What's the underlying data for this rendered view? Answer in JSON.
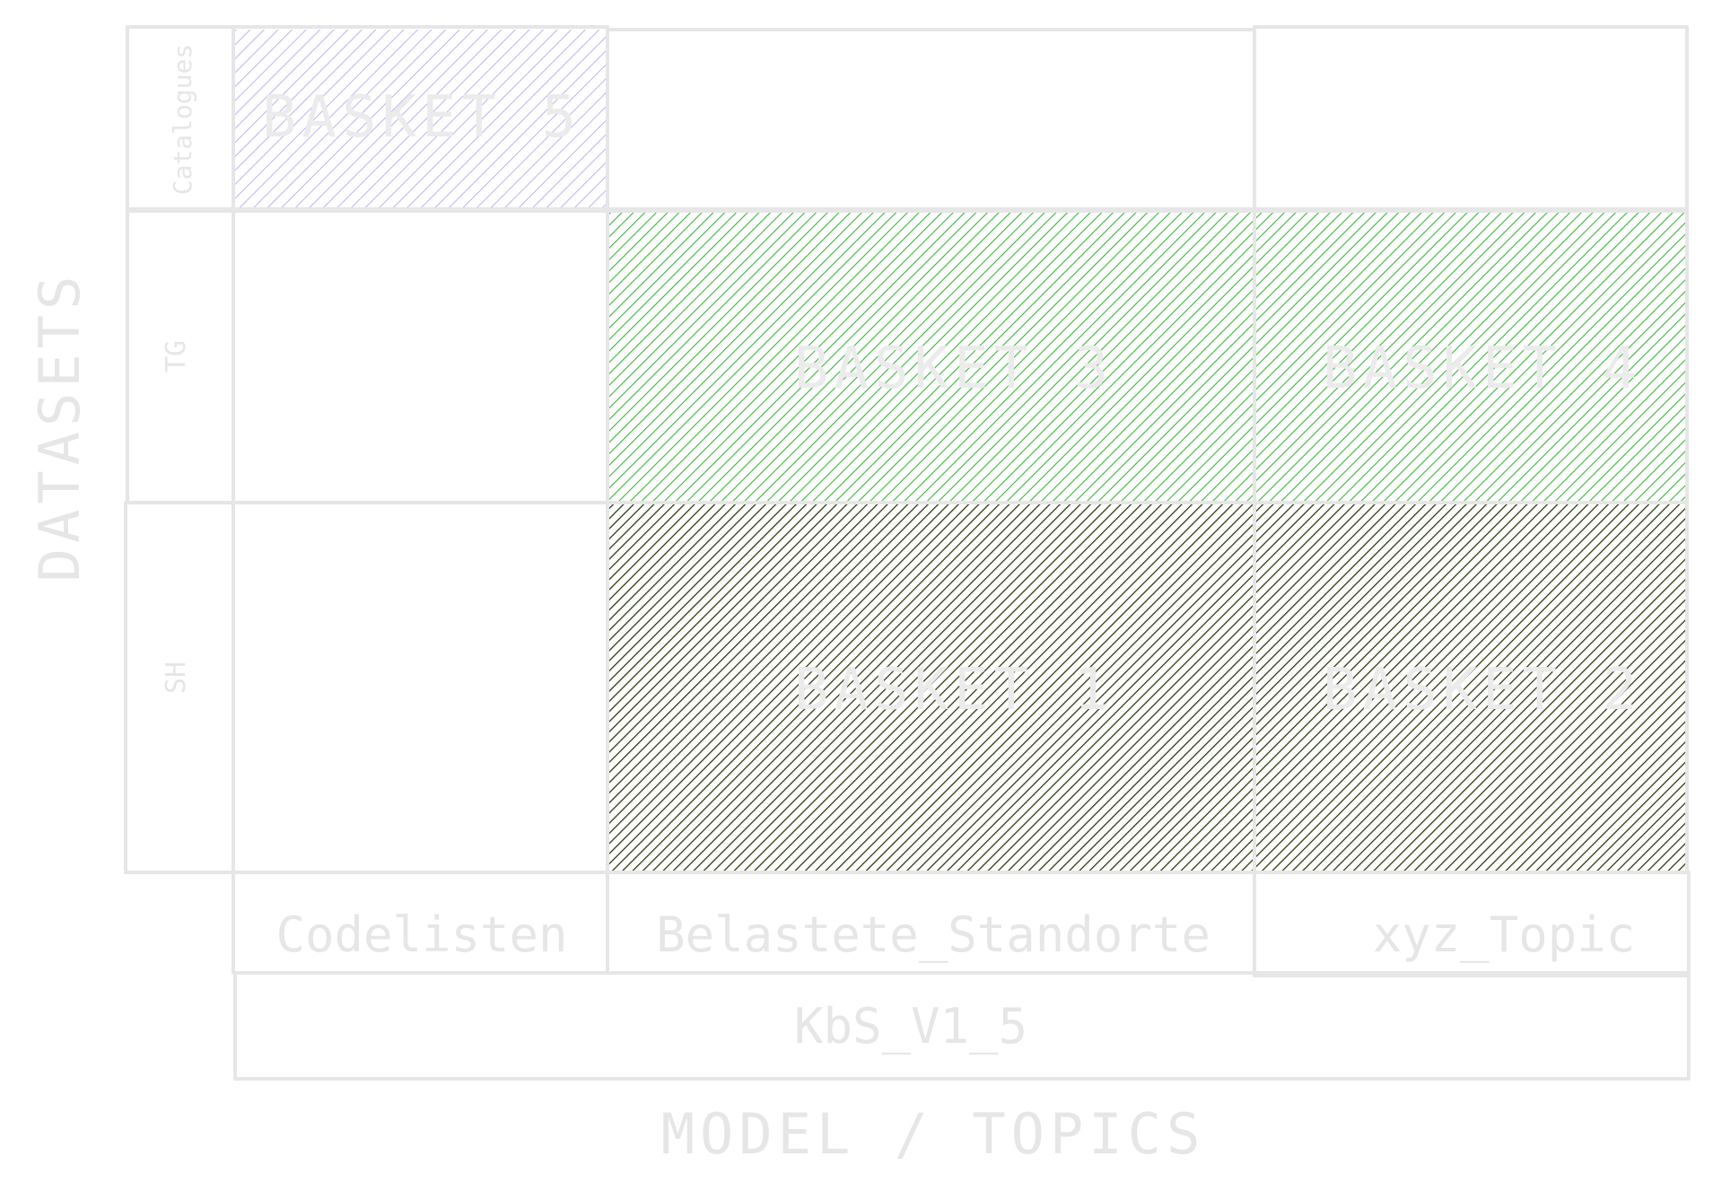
{
  "axes": {
    "y_label": "DATASETS",
    "x_label": "MODEL / TOPICS"
  },
  "rows": [
    {
      "id": "catalogues",
      "label": "Catalogues"
    },
    {
      "id": "tg",
      "label": "TG"
    },
    {
      "id": "sh",
      "label": "SH"
    }
  ],
  "topics": [
    {
      "id": "codelisten",
      "label": "Codelisten"
    },
    {
      "id": "belastete",
      "label": "Belastete_Standorte"
    },
    {
      "id": "xyz",
      "label": "xyz_Topic"
    }
  ],
  "model": {
    "label": "KbS_V1_5"
  },
  "baskets": [
    {
      "id": "basket-5",
      "label": "BASKET 5",
      "row": 0,
      "col": 0,
      "color": "#b9b3f2"
    },
    {
      "id": "basket-3",
      "label": "BASKET 3",
      "row": 1,
      "col": 1,
      "color": "#3db53d"
    },
    {
      "id": "basket-4",
      "label": "BASKET 4",
      "row": 1,
      "col": 2,
      "color": "#3db53d"
    },
    {
      "id": "basket-1",
      "label": "BASKET 1",
      "row": 2,
      "col": 1,
      "color": "#2f3a10"
    },
    {
      "id": "basket-2",
      "label": "BASKET 2",
      "row": 2,
      "col": 2,
      "color": "#2f3a10"
    }
  ]
}
